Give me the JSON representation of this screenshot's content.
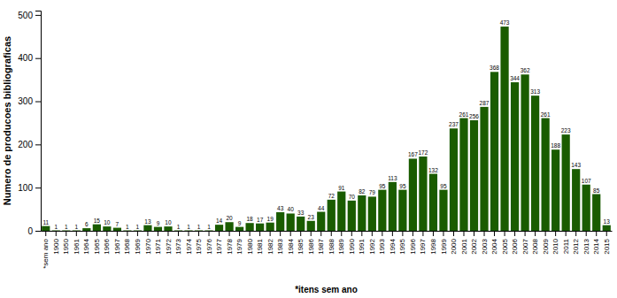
{
  "chart_data": {
    "type": "bar",
    "categories": [
      "*sem ano",
      "1900",
      "1950",
      "1961",
      "1964",
      "1965",
      "1966",
      "1967",
      "1968",
      "1969",
      "1970",
      "1971",
      "1972",
      "1973",
      "1974",
      "1975",
      "1976",
      "1977",
      "1978",
      "1979",
      "1980",
      "1981",
      "1982",
      "1983",
      "1984",
      "1985",
      "1986",
      "1987",
      "1988",
      "1989",
      "1990",
      "1991",
      "1992",
      "1993",
      "1994",
      "1995",
      "1996",
      "1997",
      "1998",
      "1999",
      "2000",
      "2001",
      "2002",
      "2003",
      "2004",
      "2005",
      "2006",
      "2007",
      "2008",
      "2009",
      "2010",
      "2011",
      "2012",
      "2013",
      "2014",
      "2015"
    ],
    "values": [
      11,
      1,
      1,
      1,
      6,
      15,
      10,
      7,
      1,
      1,
      13,
      9,
      10,
      1,
      1,
      1,
      1,
      14,
      20,
      9,
      18,
      17,
      19,
      43,
      40,
      33,
      23,
      44,
      72,
      91,
      70,
      82,
      79,
      95,
      113,
      95,
      167,
      172,
      132,
      95,
      237,
      261,
      256,
      287,
      368,
      473,
      344,
      362,
      313,
      261,
      188,
      223,
      143,
      107,
      85,
      13
    ],
    "color": "#1a5c00",
    "xlabel": "*itens sem ano",
    "ylabel": "Numero de producoes bibliograficas",
    "ylim": [
      0,
      510
    ],
    "yticks": [
      0,
      100,
      200,
      300,
      400,
      500
    ],
    "grid": false,
    "data_labels": true
  }
}
